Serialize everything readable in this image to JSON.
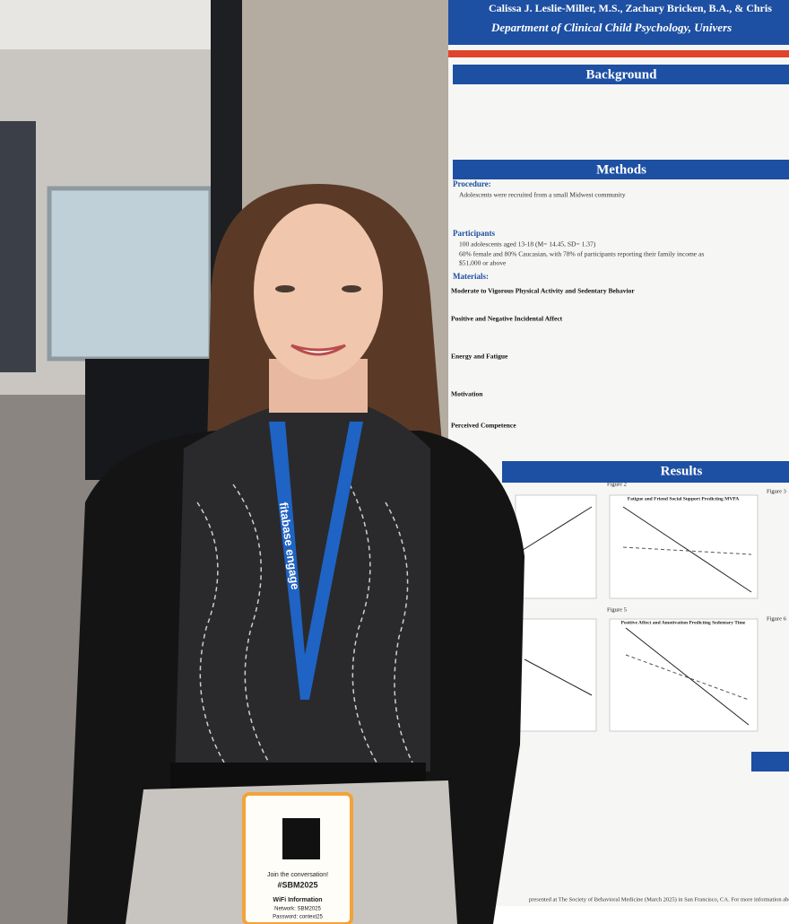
{
  "poster": {
    "authors": "Calissa J. Leslie-Miller, M.S., Zachary Bricken, B.A., & Chris",
    "department": "Department of Clinical Child Psychology, Univers",
    "sections": [
      "Background",
      "Methods",
      "Results"
    ],
    "subheads": [
      "Procedure:",
      "Participants",
      "Materials:"
    ],
    "bullets": [
      "Adolescents were recruited from a small Midwest community",
      "100 adolescents aged 13-18 (M= 14.45, SD= 1.37)",
      "60% female and 80% Caucasian, with 78% of participants reporting their family income as",
      "$51,000 or above"
    ],
    "materials": [
      "Moderate to Vigorous Physical Activity and Sedentary Behavior",
      "Positive and Negative Incidental Affect",
      "Energy and Fatigue",
      "Motivation",
      "Perceived Competence"
    ],
    "figures": [
      "Figure 2",
      "Figure 3",
      "Figure 5",
      "Figure 6"
    ],
    "figure_titles": [
      "Fatigue and Friend Social Support Predicting MVPA",
      "Positive Affect and Amotivation Predicting Sedentary Time"
    ],
    "footer": "presented at The Society of Behavioral Medicine (March 2025) in San Francisco, CA.  For more information about"
  },
  "lanyard": "fitabase engage",
  "badge": {
    "line1": "Join the conversation!",
    "hashtag": "#SBM2025",
    "wifi": "WiFi Information",
    "network": "Network: SBM2025",
    "password": "Password: context25"
  }
}
